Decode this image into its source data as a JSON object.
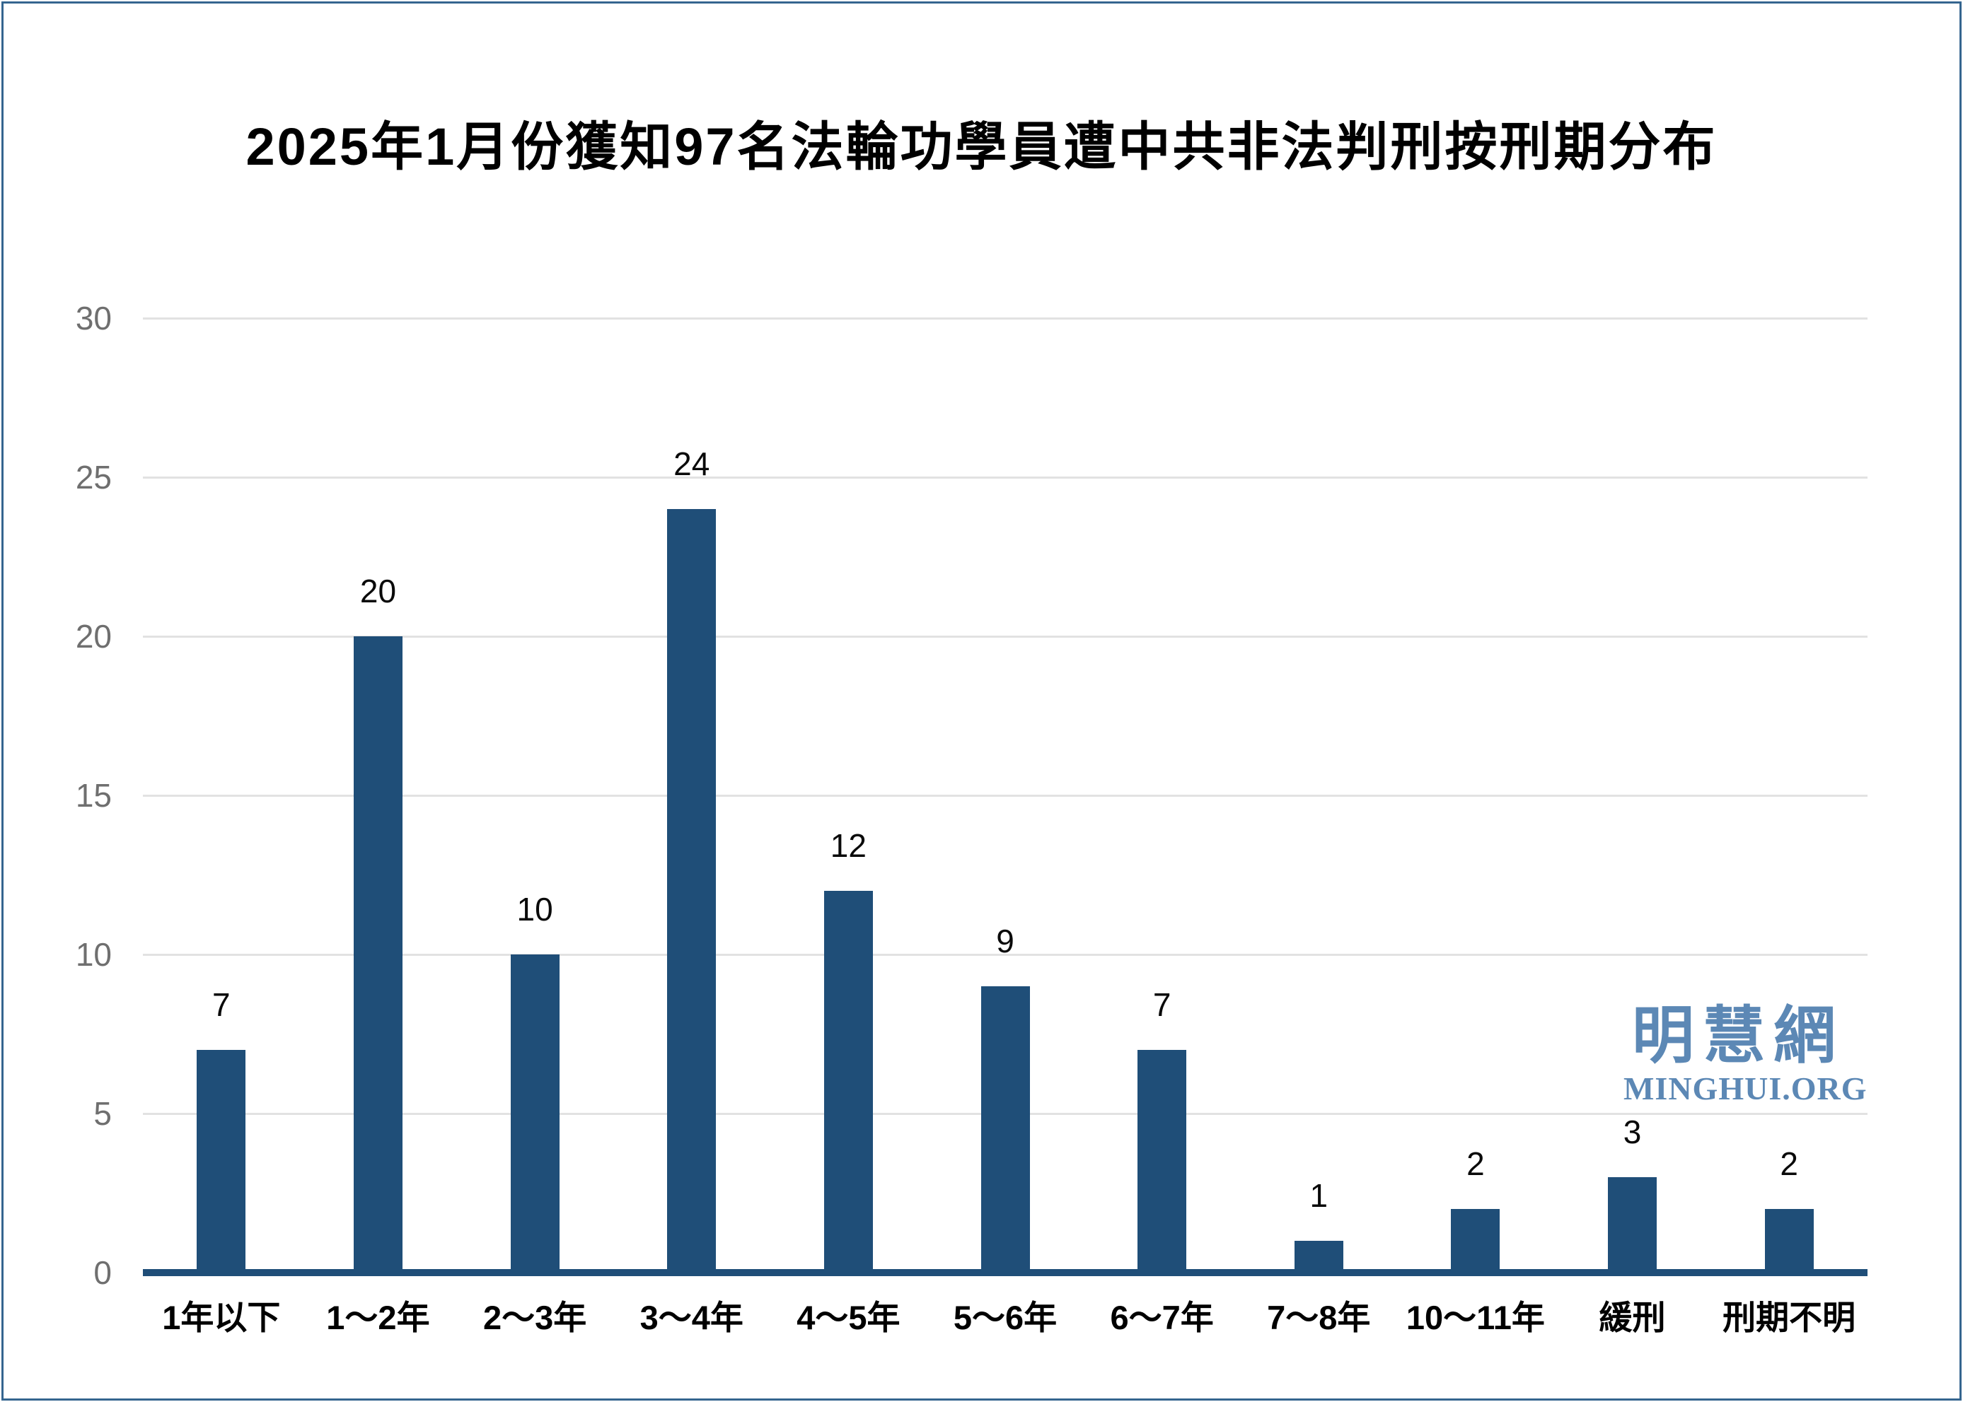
{
  "title": "2025年1月份獲知97名法輪功學員遭中共非法判刑按刑期分布",
  "watermark": {
    "cn": "明慧網",
    "en": "MINGHUI.ORG"
  },
  "colors": {
    "bar": "#1f4e78",
    "axis_line": "#1f4e78",
    "gridline": "#e2e2e2",
    "y_tick_label": "#6f6f6f",
    "data_label": "#0a0a0a",
    "title_text": "#000000",
    "watermark": "#5c88b5",
    "border": "#35658f",
    "background": "#ffffff"
  },
  "chart_data": {
    "type": "bar",
    "title": "2025年1月份獲知97名法輪功學員遭中共非法判刑按刑期分布",
    "categories": [
      "1年以下",
      "1～2年",
      "2～3年",
      "3～4年",
      "4～5年",
      "5～6年",
      "6～7年",
      "7～8年",
      "10～11年",
      "緩刑",
      "刑期不明"
    ],
    "values": [
      7,
      20,
      10,
      24,
      12,
      9,
      7,
      1,
      2,
      3,
      2
    ],
    "total": 97,
    "xlabel": "",
    "ylabel": "",
    "ylim": [
      0,
      30
    ],
    "yticks": [
      0,
      5,
      10,
      15,
      20,
      25,
      30
    ],
    "grid": true,
    "legend_position": "none",
    "data_labels_shown": true
  }
}
